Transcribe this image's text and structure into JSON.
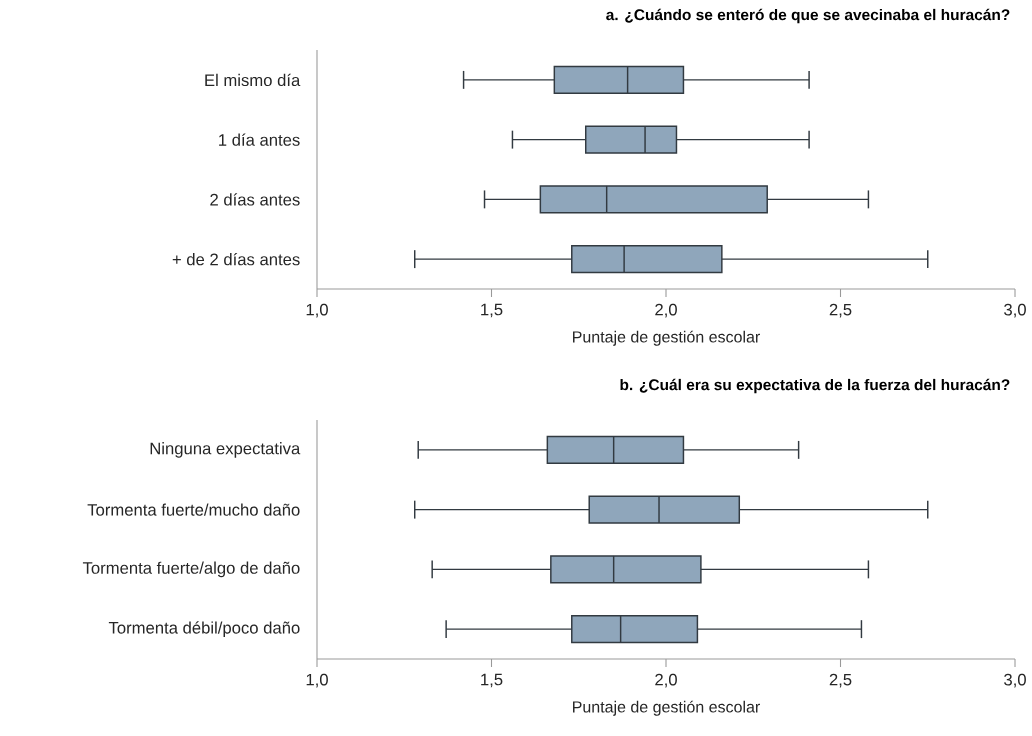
{
  "chart_data": [
    {
      "type": "box",
      "title": "a. ¿Cuándo se enteró de que se avecinaba el huracán?",
      "xlabel": "Puntaje de gestión escolar",
      "orientation": "horizontal",
      "color": "#8fa6bb",
      "categories": [
        "El mismo día",
        "1 día antes",
        "2 días antes",
        "+ de 2 días antes"
      ],
      "boxes": [
        {
          "low": 1.42,
          "q1": 1.68,
          "median": 1.89,
          "q3": 2.05,
          "high": 2.41
        },
        {
          "low": 1.56,
          "q1": 1.77,
          "median": 1.94,
          "q3": 2.03,
          "high": 2.41
        },
        {
          "low": 1.48,
          "q1": 1.64,
          "median": 1.83,
          "q3": 2.29,
          "high": 2.58
        },
        {
          "low": 1.28,
          "q1": 1.73,
          "median": 1.88,
          "q3": 2.16,
          "high": 2.75
        }
      ],
      "xlim": [
        1,
        3
      ],
      "xticks": [
        {
          "value": 1,
          "label": "1,0"
        },
        {
          "value": 1.5,
          "label": "1,5"
        },
        {
          "value": 2,
          "label": "2,0"
        },
        {
          "value": 2.5,
          "label": "2,5"
        },
        {
          "value": 3,
          "label": "3,0"
        }
      ]
    },
    {
      "type": "box",
      "title": "b. ¿Cuál era su expectativa de la fuerza del huracán?",
      "xlabel": "Puntaje de gestión escolar",
      "orientation": "horizontal",
      "color": "#8fa6bb",
      "categories": [
        "Ninguna expectativa",
        "Tormenta fuerte/mucho daño",
        "Tormenta fuerte/algo de daño",
        "Tormenta débil/poco daño"
      ],
      "boxes": [
        {
          "low": 1.29,
          "q1": 1.66,
          "median": 1.85,
          "q3": 2.05,
          "high": 2.38
        },
        {
          "low": 1.28,
          "q1": 1.78,
          "median": 1.98,
          "q3": 2.21,
          "high": 2.75
        },
        {
          "low": 1.33,
          "q1": 1.67,
          "median": 1.85,
          "q3": 2.1,
          "high": 2.58
        },
        {
          "low": 1.37,
          "q1": 1.73,
          "median": 1.87,
          "q3": 2.09,
          "high": 2.56
        }
      ],
      "xlim": [
        1,
        3
      ],
      "xticks": [
        {
          "value": 1,
          "label": "1,0"
        },
        {
          "value": 1.5,
          "label": "1,5"
        },
        {
          "value": 2,
          "label": "2,0"
        },
        {
          "value": 2.5,
          "label": "2,5"
        },
        {
          "value": 3,
          "label": "3,0"
        }
      ]
    }
  ]
}
